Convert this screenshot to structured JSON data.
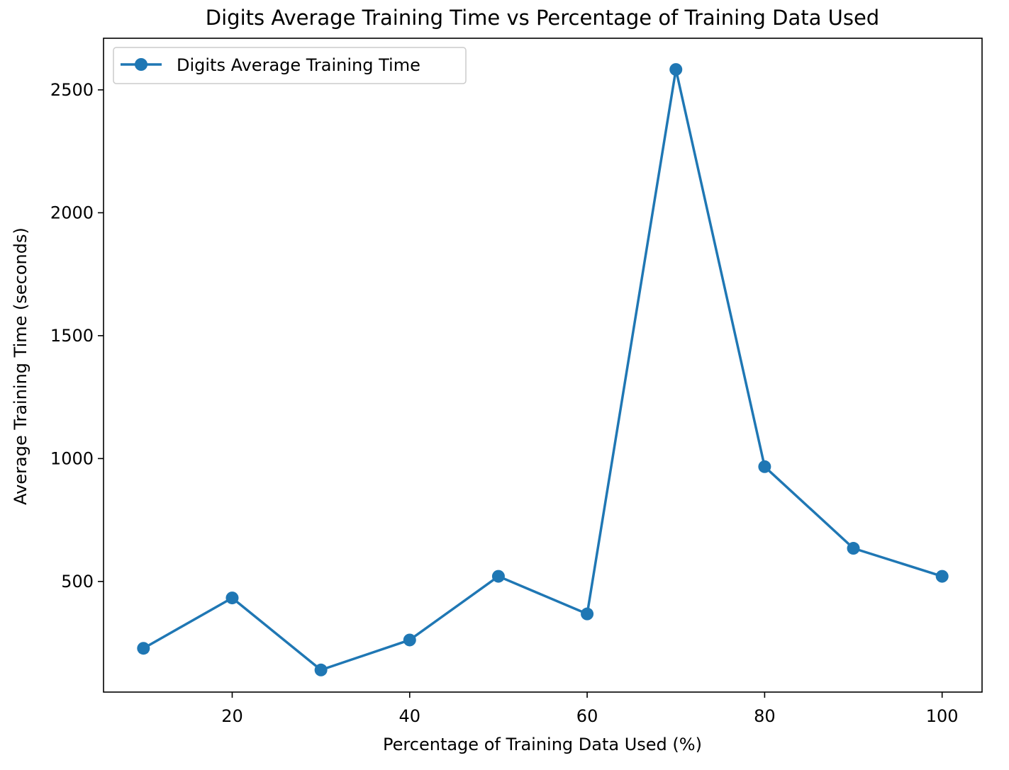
{
  "chart_data": {
    "type": "line",
    "title": "Digits Average Training Time vs Percentage of Training Data Used",
    "xlabel": "Percentage of Training Data Used (%)",
    "ylabel": "Average Training Time (seconds)",
    "xlim": [
      5.5,
      104.5
    ],
    "ylim": [
      50,
      2710
    ],
    "xticks": [
      20,
      40,
      60,
      80,
      100
    ],
    "yticks": [
      500,
      1000,
      1500,
      2000,
      2500
    ],
    "grid": false,
    "legend_position": "top-left",
    "series": [
      {
        "name": "Digits Average Training Time",
        "color": "#1f77b4",
        "marker": "circle",
        "x": [
          10,
          20,
          30,
          40,
          50,
          60,
          70,
          80,
          90,
          100
        ],
        "y": [
          228,
          433,
          140,
          262,
          521,
          368,
          2583,
          967,
          635,
          521
        ]
      }
    ]
  }
}
